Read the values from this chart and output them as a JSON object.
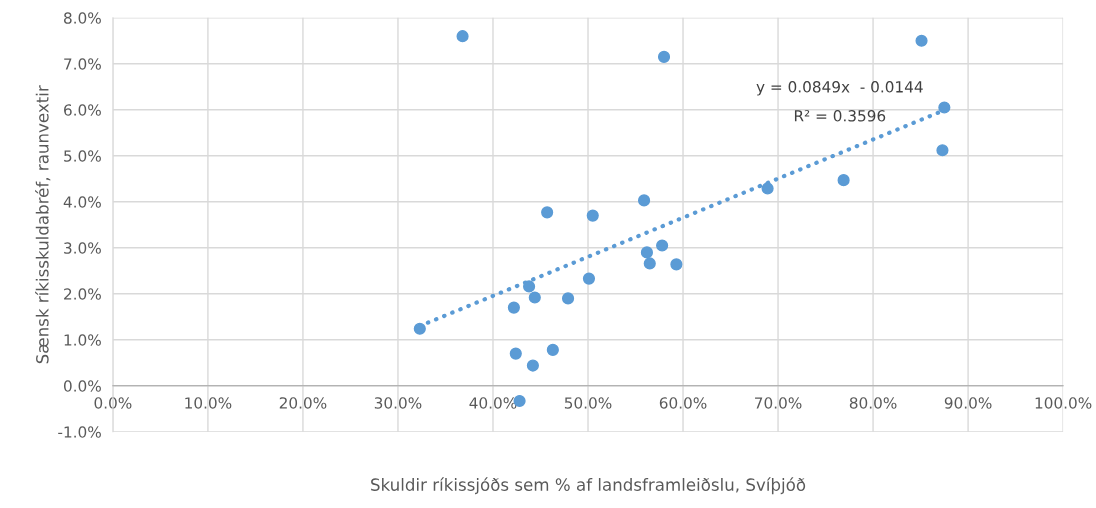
{
  "chart_data": {
    "type": "scatter",
    "xlabel": "Skuldir ríkissjóðs sem % af landsframleiðslu, Svíþjóð",
    "ylabel": "Sænsk ríkisskuldabréf, raunvextir",
    "xlim": [
      0,
      100
    ],
    "ylim": [
      -1,
      8
    ],
    "xticks": [
      {
        "value": 0,
        "label": "0.0%"
      },
      {
        "value": 10,
        "label": "10.0%"
      },
      {
        "value": 20,
        "label": "20.0%"
      },
      {
        "value": 30,
        "label": "30.0%"
      },
      {
        "value": 40,
        "label": "40.0%"
      },
      {
        "value": 50,
        "label": "50.0%"
      },
      {
        "value": 60,
        "label": "60.0%"
      },
      {
        "value": 70,
        "label": "70.0%"
      },
      {
        "value": 80,
        "label": "80.0%"
      },
      {
        "value": 90,
        "label": "90.0%"
      },
      {
        "value": 100,
        "label": "100.0%"
      }
    ],
    "yticks": [
      {
        "value": -1,
        "label": "-1.0%"
      },
      {
        "value": 0,
        "label": "0.0%"
      },
      {
        "value": 1,
        "label": "1.0%"
      },
      {
        "value": 2,
        "label": "2.0%"
      },
      {
        "value": 3,
        "label": "3.0%"
      },
      {
        "value": 4,
        "label": "4.0%"
      },
      {
        "value": 5,
        "label": "5.0%"
      },
      {
        "value": 6,
        "label": "6.0%"
      },
      {
        "value": 7,
        "label": "7.0%"
      },
      {
        "value": 8,
        "label": "8.0%"
      }
    ],
    "grid": true,
    "legend": false,
    "marker": "circle",
    "series": [
      {
        "color": "#5b9bd5",
        "x": [
          32.3,
          36.8,
          42.2,
          42.4,
          43.8,
          44.2,
          44.4,
          42.8,
          45.7,
          46.3,
          47.9,
          50.1,
          50.5,
          55.9,
          56.2,
          56.5,
          58.0,
          57.8,
          59.3,
          68.9,
          76.9,
          85.1,
          87.5,
          87.3
        ],
        "values": [
          1.24,
          7.6,
          1.7,
          0.7,
          2.16,
          0.44,
          1.92,
          -0.33,
          3.77,
          0.78,
          1.9,
          2.33,
          3.7,
          4.03,
          2.9,
          2.66,
          7.15,
          3.05,
          2.64,
          4.29,
          4.47,
          7.5,
          6.05,
          5.12
        ]
      },
      {
        "type": "line",
        "color": "#5b9bd5",
        "line_style": "dotted",
        "marker": "none",
        "x": [
          32.3,
          87.6
        ],
        "values": [
          1.3,
          6.0
        ]
      }
    ],
    "annotations": [
      "y = 0.0849x  - 0.0144",
      "R² = 0.3596"
    ]
  }
}
